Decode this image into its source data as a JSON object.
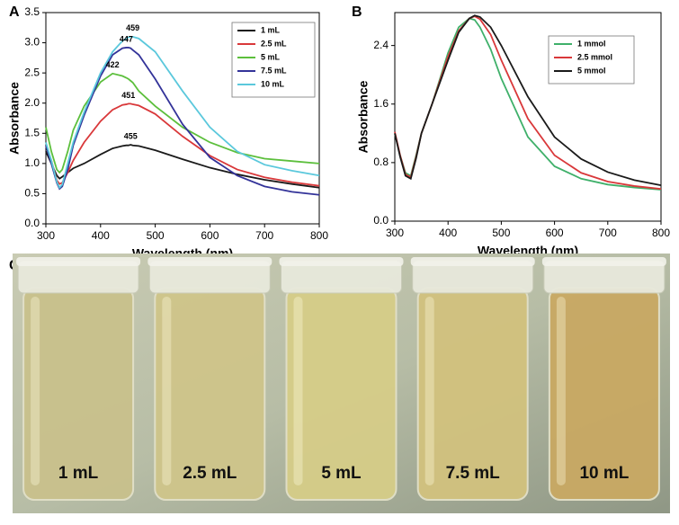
{
  "chart_data": [
    {
      "type": "line",
      "panel_label": "A",
      "x_label": "Wavelength (nm)",
      "y_label": "Absorbance",
      "x": [
        300,
        310,
        320,
        325,
        330,
        340,
        350,
        370,
        400,
        422,
        440,
        447,
        451,
        455,
        459,
        470,
        500,
        550,
        600,
        650,
        700,
        750,
        800
      ],
      "series": [
        {
          "name": "1 mL",
          "color": "#1a1a1a",
          "values": [
            1.2,
            1.0,
            0.8,
            0.75,
            0.78,
            0.85,
            0.92,
            1.0,
            1.15,
            1.25,
            1.29,
            1.3,
            1.3,
            1.31,
            1.3,
            1.29,
            1.22,
            1.07,
            0.93,
            0.82,
            0.73,
            0.66,
            0.6
          ]
        },
        {
          "name": "2.5 mL",
          "color": "#d9383a",
          "values": [
            1.3,
            1.05,
            0.72,
            0.66,
            0.68,
            0.85,
            1.05,
            1.35,
            1.7,
            1.89,
            1.97,
            1.98,
            1.99,
            1.99,
            1.98,
            1.96,
            1.82,
            1.45,
            1.13,
            0.9,
            0.77,
            0.69,
            0.63
          ]
        },
        {
          "name": "5 mL",
          "color": "#5cbf3c",
          "values": [
            1.6,
            1.2,
            0.9,
            0.85,
            0.9,
            1.2,
            1.55,
            1.95,
            2.35,
            2.49,
            2.45,
            2.42,
            2.4,
            2.37,
            2.34,
            2.2,
            1.95,
            1.6,
            1.35,
            1.18,
            1.08,
            1.04,
            1.0
          ]
        },
        {
          "name": "7.5 mL",
          "color": "#333399",
          "values": [
            1.3,
            1.0,
            0.68,
            0.58,
            0.62,
            0.9,
            1.3,
            1.8,
            2.45,
            2.8,
            2.91,
            2.92,
            2.92,
            2.91,
            2.88,
            2.8,
            2.4,
            1.65,
            1.1,
            0.8,
            0.62,
            0.53,
            0.48
          ]
        },
        {
          "name": "10 mL",
          "color": "#5bc8dc",
          "values": [
            1.35,
            1.05,
            0.7,
            0.6,
            0.65,
            1.0,
            1.35,
            1.85,
            2.5,
            2.85,
            3.03,
            3.07,
            3.09,
            3.1,
            3.1,
            3.07,
            2.85,
            2.2,
            1.6,
            1.2,
            0.98,
            0.88,
            0.8
          ]
        }
      ],
      "annotations": [
        {
          "label": "455",
          "x": 455,
          "y": 1.31
        },
        {
          "label": "451",
          "x": 451,
          "y": 1.99
        },
        {
          "label": "422",
          "x": 422,
          "y": 2.49
        },
        {
          "label": "447",
          "x": 447,
          "y": 2.92
        },
        {
          "label": "459",
          "x": 459,
          "y": 3.1
        }
      ],
      "xlim": [
        300,
        800
      ],
      "xticks": [
        300,
        400,
        500,
        600,
        700,
        800
      ],
      "ylim": [
        0,
        3.5
      ],
      "yticks": [
        {
          "value": 0,
          "label": "0.0"
        },
        0.5,
        {
          "value": 1,
          "label": "1.0"
        },
        1.5,
        {
          "value": 2,
          "label": "2.0"
        },
        2.5,
        {
          "value": 3,
          "label": "3.0"
        },
        3.5
      ]
    },
    {
      "type": "line",
      "panel_label": "B",
      "x_label": "Wavelength (nm)",
      "y_label": "Absorbance",
      "x": [
        300,
        310,
        320,
        330,
        340,
        350,
        370,
        400,
        420,
        440,
        450,
        460,
        480,
        500,
        550,
        600,
        650,
        700,
        750,
        800
      ],
      "series": [
        {
          "name": "1 mmol",
          "color": "#3fb06a",
          "values": [
            1.2,
            0.9,
            0.66,
            0.62,
            0.9,
            1.2,
            1.6,
            2.3,
            2.65,
            2.77,
            2.75,
            2.65,
            2.35,
            1.95,
            1.15,
            0.75,
            0.58,
            0.5,
            0.46,
            0.43
          ]
        },
        {
          "name": "2.5 mmol",
          "color": "#d9383a",
          "values": [
            1.22,
            0.9,
            0.64,
            0.6,
            0.88,
            1.2,
            1.6,
            2.25,
            2.6,
            2.77,
            2.8,
            2.76,
            2.55,
            2.2,
            1.4,
            0.9,
            0.66,
            0.54,
            0.48,
            0.44
          ]
        },
        {
          "name": "5 mmol",
          "color": "#1a1a1a",
          "values": [
            1.2,
            0.88,
            0.62,
            0.58,
            0.86,
            1.2,
            1.6,
            2.2,
            2.58,
            2.77,
            2.81,
            2.79,
            2.65,
            2.4,
            1.7,
            1.15,
            0.85,
            0.67,
            0.56,
            0.49
          ]
        }
      ],
      "xlim": [
        300,
        800
      ],
      "xticks": [
        300,
        400,
        500,
        600,
        700,
        800
      ],
      "ylim": [
        0,
        2.85
      ],
      "yticks": [
        {
          "value": 0,
          "label": "0.0"
        },
        0.8,
        1.6,
        2.4
      ]
    }
  ],
  "photo": {
    "panel_label": "C",
    "vial_labels": [
      "1 mL",
      "2.5 mL",
      "5 mL",
      "7.5 mL",
      "10 mL"
    ]
  }
}
